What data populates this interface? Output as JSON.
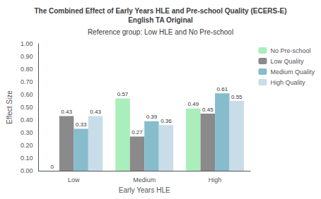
{
  "chart_data": {
    "type": "bar",
    "title": "The Combined Effect of Early Years HLE and Pre-school Quality (ECERS-E)\nEnglish TA Original",
    "subtitle": "Reference group: Low HLE and No Pre-school",
    "x_label": "Early Years HLE",
    "y_label": "Effect Size",
    "categories": [
      "Low",
      "Medium",
      "High"
    ],
    "series": [
      {
        "name": "No Pre-school",
        "color": "#aaeebb",
        "values": [
          0.0,
          0.57,
          0.49
        ]
      },
      {
        "name": "Low Quality",
        "color": "#8a8a8a",
        "values": [
          0.43,
          0.27,
          0.45
        ]
      },
      {
        "name": "Medium Quality",
        "color": "#87bccc",
        "values": [
          0.33,
          0.39,
          0.61
        ]
      },
      {
        "name": "High Quality",
        "color": "#c8dde8",
        "values": [
          0.43,
          0.36,
          0.55
        ]
      }
    ],
    "ylim": [
      0,
      1.0
    ],
    "yticks": [
      {
        "value": 0.0,
        "label": "0.00"
      },
      {
        "value": 0.1,
        "label": "0.10"
      },
      {
        "value": 0.2,
        "label": "0.20"
      },
      {
        "value": 0.3,
        "label": "0.30"
      },
      {
        "value": 0.4,
        "label": "0.40"
      },
      {
        "value": 0.5,
        "label": "0.50"
      },
      {
        "value": 0.6,
        "label": "0.60"
      },
      {
        "value": 0.7,
        "label": "0.70"
      },
      {
        "value": 0.8,
        "label": "0.80"
      },
      {
        "value": 0.9,
        "label": "0.90"
      },
      {
        "value": 1.0,
        "label": "1.00"
      }
    ],
    "grid": false,
    "legend": "right",
    "data_labels": true
  }
}
